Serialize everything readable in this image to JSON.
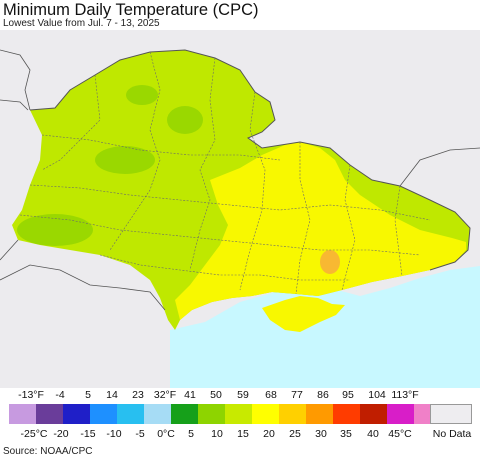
{
  "title": "Minimum Daily Temperature (CPC)",
  "subtitle": "Lowest Value from Jul. 7 - 13, 2025",
  "legend": {
    "fahrenheit_labels": [
      "-13°F",
      "-4",
      "5",
      "14",
      "23",
      "32°F",
      "41",
      "50",
      "59",
      "68",
      "77",
      "86",
      "95",
      "104",
      "113°F"
    ],
    "celsius_labels": [
      "-25°C",
      "-20",
      "-15",
      "-10",
      "-5",
      "0°C",
      "5",
      "10",
      "15",
      "20",
      "25",
      "30",
      "35",
      "40",
      "45°C"
    ],
    "colors": [
      "#c79ae0",
      "#6a3d9a",
      "#1f1fc8",
      "#1e90ff",
      "#28bff0",
      "#a6dcf5",
      "#16a01a",
      "#8ed400",
      "#c8ea00",
      "#ffff00",
      "#ffd000",
      "#ff9a00",
      "#ff3c00",
      "#c01e00",
      "#d81ec8",
      "#f080c8"
    ],
    "no_data_label": "No Data",
    "no_data_color": "#eeedf0"
  },
  "map": {
    "ocean_color": "#c8f8ff",
    "outside_color": "#ecebee",
    "region_colors": {
      "base": "#bfe800",
      "warm": "#f8f800",
      "cool": "#9ad800",
      "hot": "#f8b832"
    }
  },
  "source": "Source: NOAA/CPC"
}
